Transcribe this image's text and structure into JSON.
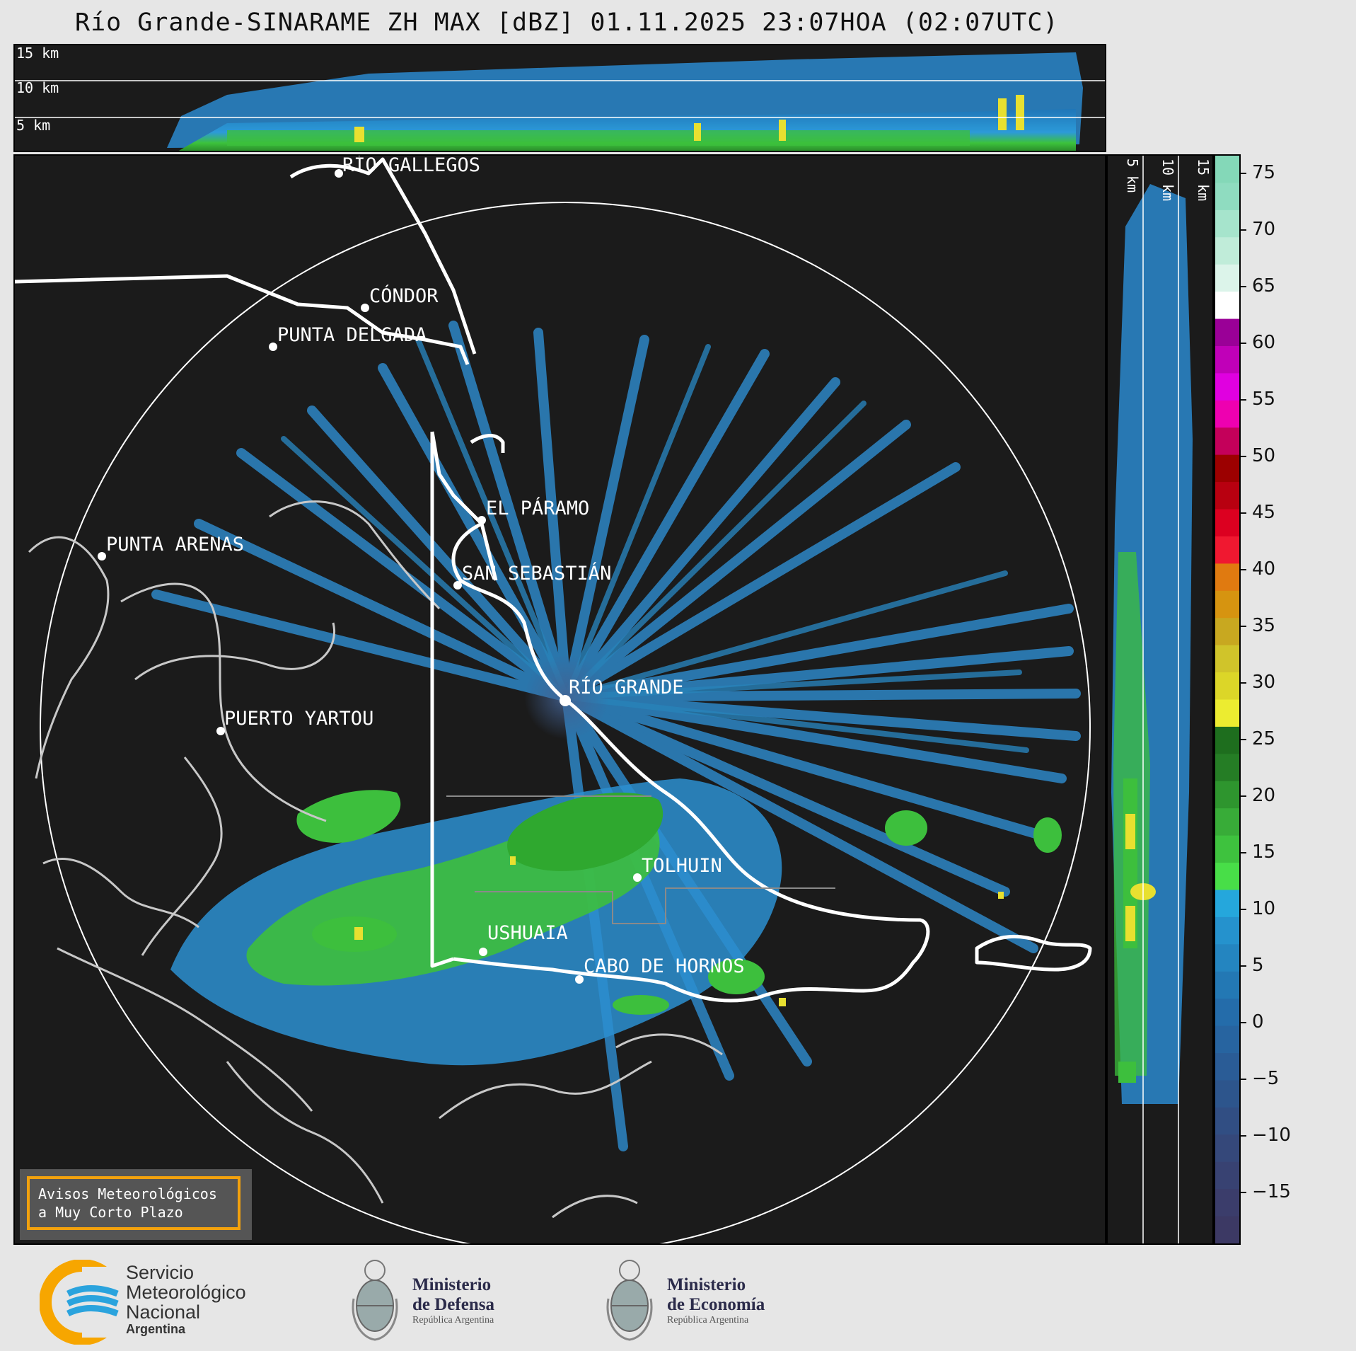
{
  "title": "Río Grande-SINARAME ZH MAX [dBZ] 01.11.2025 23:07HOA (02:07UTC)",
  "top_panel": {
    "height_labels": [
      "15 km",
      "10 km",
      "5 km"
    ]
  },
  "side_panel": {
    "height_labels": [
      "5 km",
      "10 km",
      "15 km"
    ]
  },
  "map": {
    "places": [
      {
        "name": "RÍO GALLEGOS"
      },
      {
        "name": "CÓNDOR"
      },
      {
        "name": "PUNTA DELGADA"
      },
      {
        "name": "EL PÁRAMO"
      },
      {
        "name": "PUNTA ARENAS"
      },
      {
        "name": "SAN SEBASTIÁN"
      },
      {
        "name": "RÍO GRANDE"
      },
      {
        "name": "PUERTO YARTOU"
      },
      {
        "name": "TOLHUIN"
      },
      {
        "name": "USHUAIA"
      },
      {
        "name": "CABO DE HORNOS"
      }
    ]
  },
  "colorbar": {
    "unit": "dBZ",
    "ticks": [
      "75",
      "70",
      "65",
      "60",
      "55",
      "50",
      "45",
      "40",
      "35",
      "30",
      "25",
      "20",
      "15",
      "10",
      "5",
      "0",
      "−5",
      "−10",
      "−15"
    ]
  },
  "alert": {
    "line1": "Avisos Meteorológicos",
    "line2": "a Muy Corto Plazo"
  },
  "footer": {
    "smn": {
      "line1": "Servicio",
      "line2": "Meteorológico",
      "line3": "Nacional",
      "line4": "Argentina"
    },
    "defensa": {
      "line1": "Ministerio",
      "line2": "de Defensa",
      "line3": "República Argentina"
    },
    "economia": {
      "line1": "Ministerio",
      "line2": "de Economía",
      "line3": "República Argentina"
    }
  },
  "colors": {
    "background": "#e6e6e6",
    "panel": "#1b1b1b",
    "echo_weak": "#3a6ea5",
    "echo_mid": "#2b95d6",
    "echo_green": "#3fbf3f",
    "echo_yellow": "#e8e030",
    "alert_border": "#f2a10d",
    "smn_blue": "#2aa3dd",
    "smn_orange": "#f7a600"
  }
}
